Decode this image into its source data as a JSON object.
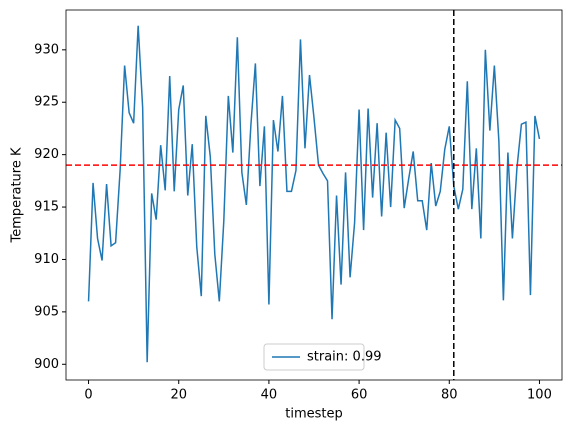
{
  "chart_data": {
    "type": "line",
    "x_label": "timestep",
    "y_label": "Temperature K",
    "x": [
      0,
      1,
      2,
      3,
      4,
      5,
      6,
      7,
      8,
      9,
      10,
      11,
      12,
      13,
      14,
      15,
      16,
      17,
      18,
      19,
      20,
      21,
      22,
      23,
      24,
      25,
      26,
      27,
      28,
      29,
      30,
      31,
      32,
      33,
      34,
      35,
      36,
      37,
      38,
      39,
      40,
      41,
      42,
      43,
      44,
      45,
      46,
      47,
      48,
      49,
      50,
      51,
      52,
      53,
      54,
      55,
      56,
      57,
      58,
      59,
      60,
      61,
      62,
      63,
      64,
      65,
      66,
      67,
      68,
      69,
      70,
      71,
      72,
      73,
      74,
      75,
      76,
      77,
      78,
      79,
      80,
      81,
      82,
      83,
      84,
      85,
      86,
      87,
      88,
      89,
      90,
      91,
      92,
      93,
      94,
      95,
      96,
      97,
      98,
      99,
      100
    ],
    "series": [
      {
        "name": "strain: 0.99",
        "color": "#1f77b4",
        "values": [
          906,
          917.3,
          912,
          909.9,
          917.2,
          911.3,
          911.6,
          918.5,
          928.5,
          924,
          923,
          932.3,
          924.5,
          900.2,
          916.3,
          913.8,
          920.9,
          916.6,
          927.5,
          916.5,
          924.3,
          926.6,
          916.1,
          921,
          911.2,
          906.5,
          923.7,
          919.8,
          910.5,
          906,
          913.7,
          925.6,
          920.2,
          931.2,
          918.3,
          915.2,
          922.8,
          928.7,
          917,
          922.7,
          905.7,
          923.3,
          920.3,
          925.6,
          916.5,
          916.5,
          918.5,
          931,
          920.6,
          927.6,
          923.5,
          919,
          918.2,
          917.5,
          904.3,
          916.1,
          907.6,
          918.3,
          908.3,
          913.5,
          924.3,
          912.8,
          924.4,
          915.9,
          923,
          914.1,
          922.1,
          915,
          923.3,
          922.5,
          914.9,
          917.7,
          920.3,
          915.6,
          915.6,
          912.8,
          919.2,
          915.1,
          916.5,
          920.5,
          922.7,
          917,
          914.8,
          916.7,
          927,
          914.8,
          920.6,
          912,
          930,
          922.3,
          928.5,
          921.3,
          906.1,
          920.2,
          912,
          918.7,
          922.9,
          923.1,
          906.6,
          923.7,
          921.5
        ]
      }
    ],
    "hline": {
      "value": 919,
      "color": "#ff0000"
    },
    "vline": {
      "value": 81,
      "color": "#000000"
    },
    "xlim": [
      -5,
      105
    ],
    "ylim": [
      898.5,
      933.8
    ],
    "xticks": [
      0,
      20,
      40,
      60,
      80,
      100
    ],
    "yticks": [
      900,
      905,
      910,
      915,
      920,
      925,
      930
    ],
    "legend": "lower center",
    "grid": false
  }
}
